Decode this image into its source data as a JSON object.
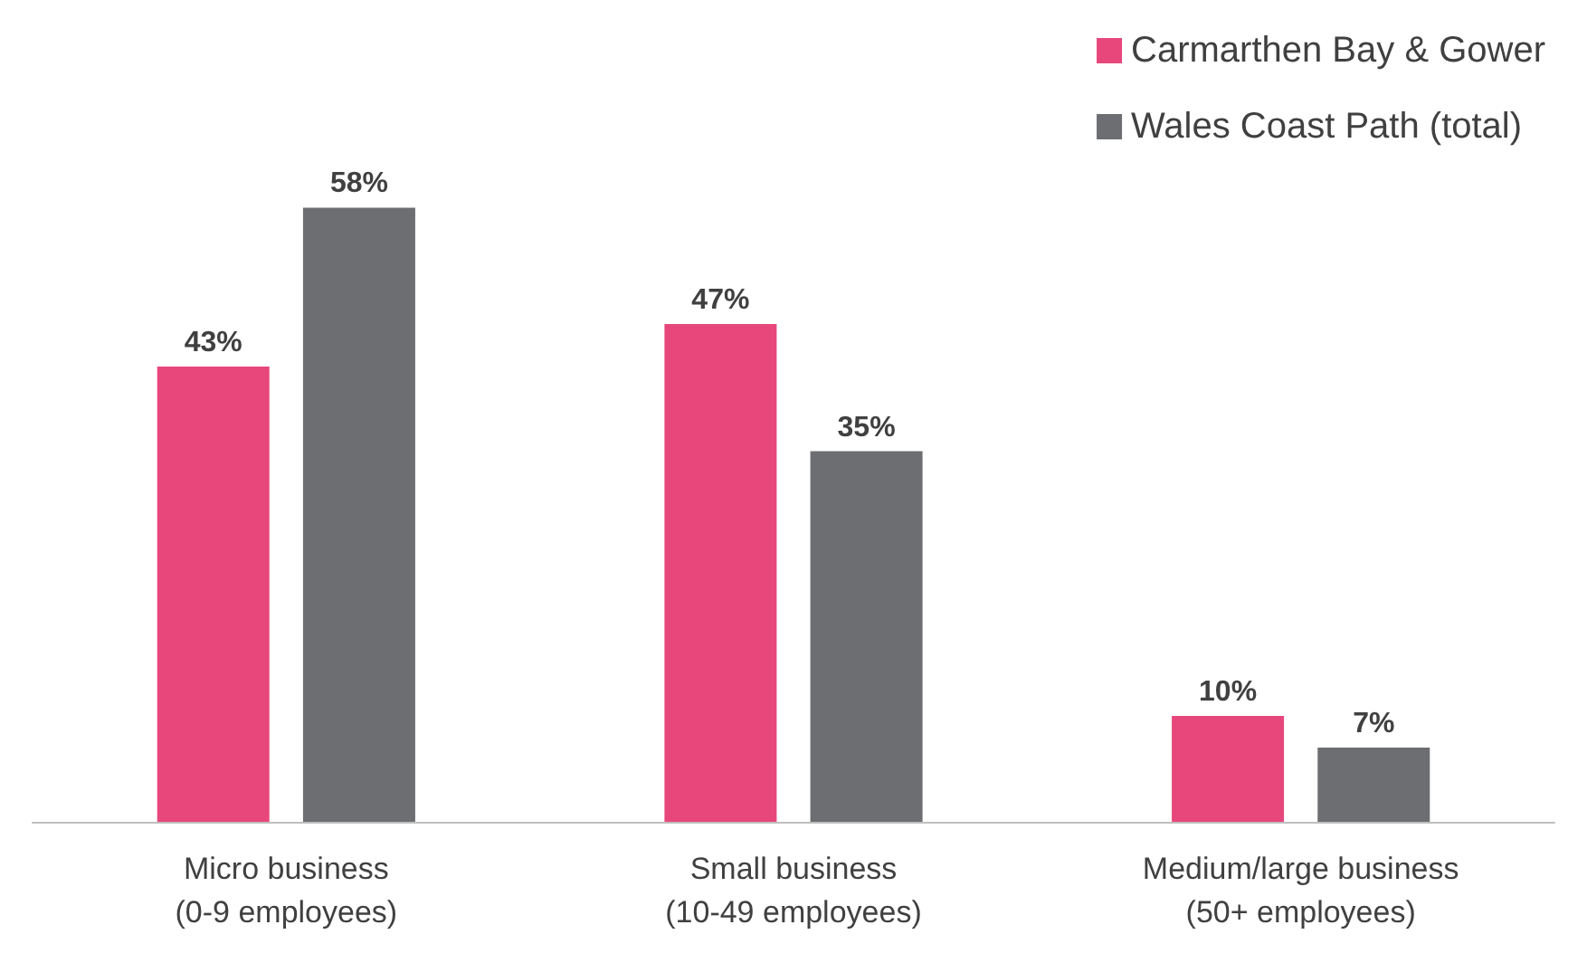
{
  "chart_data": {
    "type": "bar",
    "categories": [
      "Micro business\n(0-9 employees)",
      "Small business\n(10-49 employees)",
      "Medium/large business\n(50+ employees)"
    ],
    "series": [
      {
        "name": "Carmarthen Bay & Gower",
        "color": "#e8477b",
        "values": [
          43,
          47,
          10
        ],
        "value_labels": [
          "43%",
          "47%",
          "10%"
        ]
      },
      {
        "name": "Wales Coast Path (total)",
        "color": "#6d6e71",
        "values": [
          58,
          35,
          7
        ],
        "value_labels": [
          "58%",
          "35%",
          "7%"
        ]
      }
    ],
    "legend": "top right",
    "grid": false
  }
}
